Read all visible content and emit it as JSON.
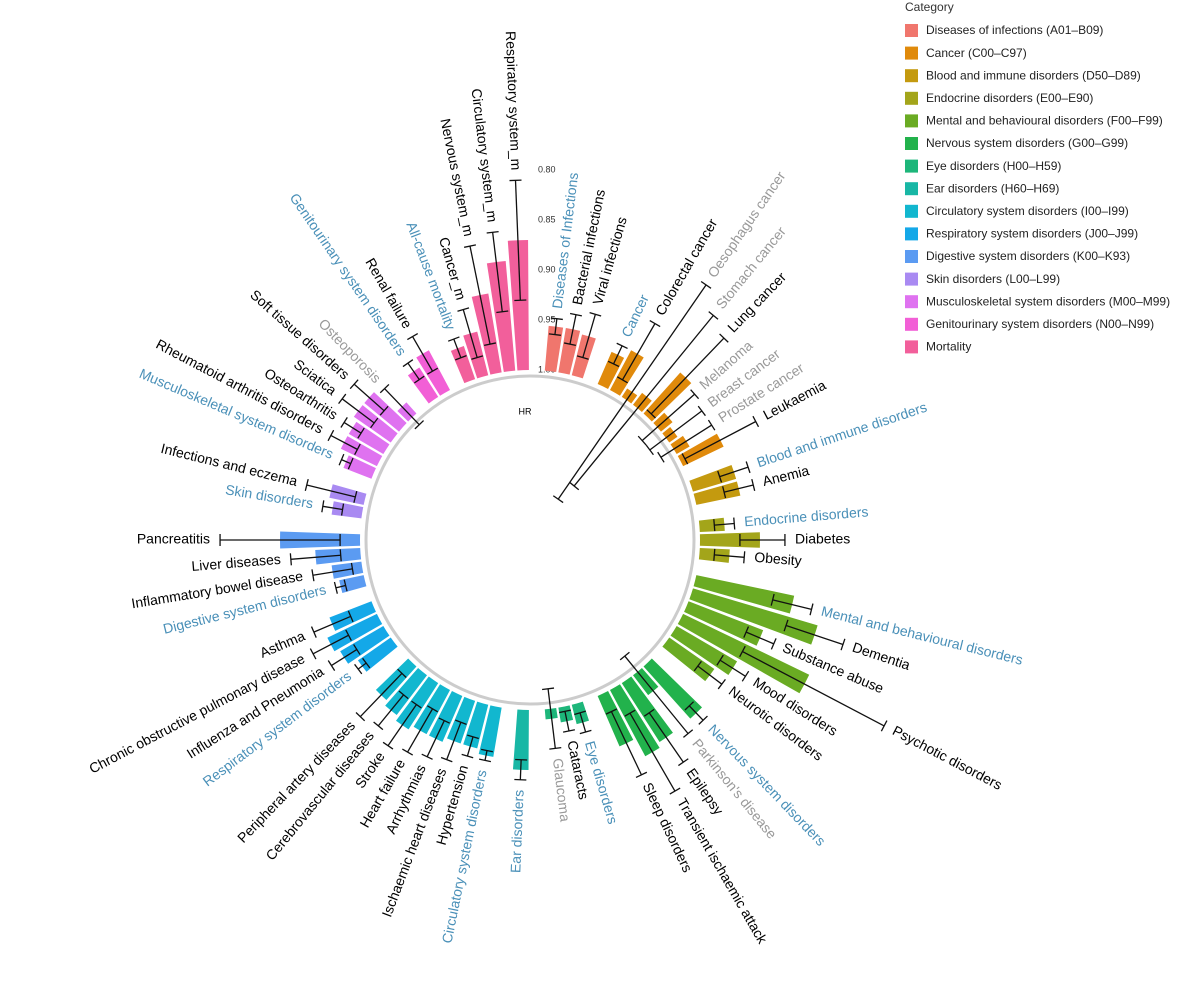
{
  "chart_data": {
    "type": "circular_bar",
    "axis_label": "HR",
    "legend_title": "Category",
    "rlim": [
      1.0,
      0.8
    ],
    "rticks": [
      {
        "value": 0.8,
        "label": "0.80"
      },
      {
        "value": 0.85,
        "label": "0.85"
      },
      {
        "value": 0.9,
        "label": "0.90"
      },
      {
        "value": 0.95,
        "label": "0.95"
      },
      {
        "value": 1.0,
        "label": "1.00"
      }
    ],
    "series": [
      {
        "name": "Diseases of infections (A01–B09)",
        "color": "#f0766d",
        "categories": [
          "Diseases of Infections",
          "Bacterial infections",
          "Viral infections"
        ],
        "values": [
          0.955,
          0.955,
          0.958
        ],
        "ci_low": [
          0.947,
          0.94,
          0.935
        ],
        "ci_high": [
          0.963,
          0.97,
          0.98
        ],
        "label_colors": [
          "#4a90b8",
          "#000000",
          "#000000"
        ]
      },
      {
        "name": "Cancer (C00–C97)",
        "color": "#e08a0b",
        "categories": [
          "Cancer",
          "Colorectal cancer",
          "Oesophagus cancer",
          "Stomach cancer",
          "Lung cancer",
          "Melanoma",
          "Breast cancer",
          "Prostate cancer",
          "Leukaemia"
        ],
        "values": [
          0.965,
          0.955,
          0.99,
          0.985,
          0.945,
          0.985,
          0.99,
          0.985,
          0.955
        ],
        "ci_low": [
          0.955,
          0.92,
          0.86,
          0.88,
          0.89,
          0.95,
          0.955,
          0.955,
          0.915
        ],
        "ci_high": [
          0.975,
          0.985,
          1.12,
          1.1,
          0.995,
          1.02,
          1.02,
          1.015,
          0.995
        ],
        "label_colors": [
          "#4a90b8",
          "#000000",
          "#999999",
          "#999999",
          "#000000",
          "#999999",
          "#999999",
          "#999999",
          "#000000"
        ]
      },
      {
        "name": "Blood and immune disorders (D50–D89)",
        "color": "#c49a0f",
        "categories": [
          "Blood and immune disorders",
          "Anemia"
        ],
        "values": [
          0.955,
          0.955
        ],
        "ci_low": [
          0.94,
          0.94
        ],
        "ci_high": [
          0.97,
          0.97
        ],
        "label_colors": [
          "#4a90b8",
          "#000000"
        ]
      },
      {
        "name": "Endocrine disorders (E00–E90)",
        "color": "#a3a51a",
        "categories": [
          "Endocrine disorders",
          "Diabetes",
          "Obesity"
        ],
        "values": [
          0.975,
          0.94,
          0.97
        ],
        "ci_low": [
          0.965,
          0.915,
          0.955
        ],
        "ci_high": [
          0.985,
          0.96,
          0.985
        ],
        "label_colors": [
          "#4a90b8",
          "#000000",
          "#000000"
        ]
      },
      {
        "name": "Mental and behavioural disorders (F00–F99)",
        "color": "#6aab23",
        "categories": [
          "Mental and behavioural disorders",
          "Dementia",
          "Substance abuse",
          "Psychotic disorders",
          "Mood disorders",
          "Neurotic disorders"
        ],
        "values": [
          0.9,
          0.87,
          0.92,
          0.86,
          0.93,
          0.945
        ],
        "ci_low": [
          0.88,
          0.84,
          0.905,
          0.77,
          0.915,
          0.93
        ],
        "ci_high": [
          0.92,
          0.9,
          0.935,
          0.93,
          0.945,
          0.96
        ],
        "label_colors": [
          "#4a90b8",
          "#000000",
          "#000000",
          "#000000",
          "#000000",
          "#000000"
        ]
      },
      {
        "name": "Nervous system disorders (G00–G99)",
        "color": "#22b24c",
        "categories": [
          "Nervous system disorders",
          "Parkinson's disease",
          "Epilepsy",
          "Transient ischaemic attack",
          "Sleep disorders"
        ],
        "values": [
          0.93,
          0.975,
          0.93,
          0.925,
          0.945
        ],
        "ci_low": [
          0.92,
          0.92,
          0.9,
          0.88,
          0.91
        ],
        "ci_high": [
          0.94,
          1.02,
          0.96,
          0.97,
          0.98
        ],
        "label_colors": [
          "#4a90b8",
          "#999999",
          "#000000",
          "#000000",
          "#000000"
        ]
      },
      {
        "name": "Eye disorders (H00–H59)",
        "color": "#1db67a",
        "categories": [
          "Eye disorders",
          "Cataracts",
          "Glaucoma"
        ],
        "values": [
          0.98,
          0.985,
          0.99
        ],
        "ci_low": [
          0.97,
          0.975,
          0.96
        ],
        "ci_high": [
          0.99,
          0.995,
          1.02
        ],
        "label_colors": [
          "#4a90b8",
          "#000000",
          "#999999"
        ]
      },
      {
        "name": "Ear disorders (H60–H69)",
        "color": "#18b7a5",
        "categories": [
          "Ear disorders"
        ],
        "values": [
          0.94
        ],
        "ci_low": [
          0.93
        ],
        "ci_high": [
          0.95
        ],
        "label_colors": [
          "#4a90b8"
        ]
      },
      {
        "name": "Circulatory system disorders (I00–I99)",
        "color": "#12b7cf",
        "categories": [
          "Circulatory system disorders",
          "Hypertension",
          "Ischaemic heart diseases",
          "Arrhythmias",
          "Heart failure",
          "Stroke",
          "Cerebrovascular diseases",
          "Peripheral artery diseases"
        ],
        "values": [
          0.95,
          0.955,
          0.955,
          0.95,
          0.95,
          0.945,
          0.95,
          0.955
        ],
        "ci_low": [
          0.945,
          0.945,
          0.935,
          0.93,
          0.925,
          0.92,
          0.93,
          0.925
        ],
        "ci_high": [
          0.955,
          0.965,
          0.975,
          0.97,
          0.975,
          0.97,
          0.97,
          0.985
        ],
        "label_colors": [
          "#4a90b8",
          "#000000",
          "#000000",
          "#000000",
          "#000000",
          "#000000",
          "#000000",
          "#000000"
        ]
      },
      {
        "name": "Respiratory system disorders (J00–J99)",
        "color": "#14a8e8",
        "categories": [
          "Respiratory system disorders",
          "Influenza and Pneumonia",
          "Chronic obstructive pulmonary disease",
          "Asthma"
        ],
        "values": [
          0.96,
          0.95,
          0.945,
          0.955
        ],
        "ci_low": [
          0.955,
          0.935,
          0.925,
          0.935
        ],
        "ci_high": [
          0.965,
          0.965,
          0.965,
          0.975
        ],
        "label_colors": [
          "#4a90b8",
          "#000000",
          "#000000",
          "#000000"
        ]
      },
      {
        "name": "Digestive system disorders (K00–K93)",
        "color": "#5b9bf2",
        "categories": [
          "Digestive system disorders",
          "Inflammatory bowel disease",
          "Liver diseases",
          "Pancreatitis"
        ],
        "values": [
          0.975,
          0.97,
          0.955,
          0.92
        ],
        "ci_low": [
          0.97,
          0.95,
          0.93,
          0.86
        ],
        "ci_high": [
          0.98,
          0.99,
          0.98,
          0.98
        ],
        "label_colors": [
          "#4a90b8",
          "#000000",
          "#000000",
          "#000000"
        ]
      },
      {
        "name": "Skin disorders (L00–L99)",
        "color": "#a98af2",
        "categories": [
          "Skin disorders",
          "Infections and eczema"
        ],
        "values": [
          0.97,
          0.965
        ],
        "ci_low": [
          0.96,
          0.94
        ],
        "ci_high": [
          0.98,
          0.99
        ],
        "label_colors": [
          "#4a90b8",
          "#000000"
        ]
      },
      {
        "name": "Musculoskeletal system disorders (M00–M99)",
        "color": "#df72f0",
        "categories": [
          "Musculoskeletal system disorders",
          "Rheumatoid arthritis disorders",
          "Osteoarthritis",
          "Sciatica",
          "Soft tissue disorders",
          "Osteoporosis"
        ],
        "values": [
          0.97,
          0.96,
          0.96,
          0.955,
          0.955,
          0.985
        ],
        "ci_low": [
          0.965,
          0.945,
          0.95,
          0.935,
          0.935,
          0.96
        ],
        "ci_high": [
          0.975,
          0.975,
          0.97,
          0.975,
          0.975,
          1.01
        ],
        "label_colors": [
          "#4a90b8",
          "#000000",
          "#000000",
          "#000000",
          "#000000",
          "#999999"
        ]
      },
      {
        "name": "Genitourinary system disorders (N00–N99)",
        "color": "#f25fd6",
        "categories": [
          "Genitourinary system disorders",
          "Renal failure"
        ],
        "values": [
          0.965,
          0.955
        ],
        "ci_low": [
          0.955,
          0.935
        ],
        "ci_high": [
          0.975,
          0.975
        ],
        "label_colors": [
          "#4a90b8",
          "#000000"
        ]
      },
      {
        "name": "Mortality",
        "color": "#f25f9b",
        "categories": [
          "All-cause mortality",
          "Cancer_m",
          "Nervous system_m",
          "Circulatory system_m",
          "Respiratory system_m"
        ],
        "values": [
          0.965,
          0.955,
          0.92,
          0.89,
          0.87
        ],
        "ci_low": [
          0.955,
          0.93,
          0.87,
          0.86,
          0.81
        ],
        "ci_high": [
          0.975,
          0.98,
          0.97,
          0.94,
          0.93
        ],
        "label_colors": [
          "#4a90b8",
          "#000000",
          "#000000",
          "#000000",
          "#000000"
        ]
      }
    ]
  }
}
